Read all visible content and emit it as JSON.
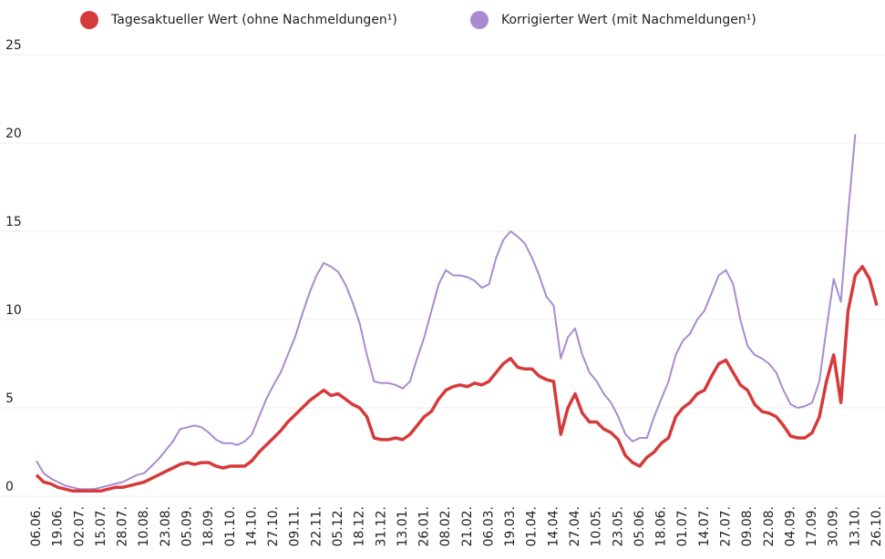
{
  "chart_data": {
    "type": "line",
    "categories": [
      "06.06.",
      null,
      null,
      "19.06.",
      null,
      null,
      "02.07.",
      null,
      null,
      "15.07.",
      null,
      null,
      "28.07.",
      null,
      null,
      "10.08.",
      null,
      null,
      "23.08.",
      null,
      null,
      "05.09.",
      null,
      null,
      "18.09.",
      null,
      null,
      "01.10.",
      null,
      null,
      "14.10.",
      null,
      null,
      "27.10.",
      null,
      null,
      "09.11.",
      null,
      null,
      "22.11.",
      null,
      null,
      "05.12.",
      null,
      null,
      "18.12.",
      null,
      null,
      "31.12.",
      null,
      null,
      "13.01.",
      null,
      null,
      "26.01.",
      null,
      null,
      "08.02.",
      null,
      null,
      "21.02.",
      null,
      null,
      "06.03.",
      null,
      null,
      "19.03.",
      null,
      null,
      "01.04.",
      null,
      null,
      "14.04.",
      null,
      null,
      "27.04.",
      null,
      null,
      "10.05.",
      null,
      null,
      "23.05.",
      null,
      null,
      "05.06.",
      null,
      null,
      "18.06.",
      null,
      null,
      "01.07.",
      null,
      null,
      "14.07.",
      null,
      null,
      "27.07.",
      null,
      null,
      "09.08.",
      null,
      null,
      "22.08.",
      null,
      null,
      "04.09.",
      null,
      null,
      "17.09.",
      null,
      null,
      "30.09.",
      null,
      null,
      "13.10.",
      null,
      null,
      "26.10."
    ],
    "series": [
      {
        "name": "Tagesaktueller Wert (ohne Nachmeldungen¹)",
        "color": "#d63a3a",
        "values": [
          1.2,
          0.8,
          0.7,
          0.5,
          0.4,
          0.3,
          0.3,
          0.3,
          0.3,
          0.3,
          0.4,
          0.5,
          0.5,
          0.6,
          0.7,
          0.8,
          1.0,
          1.2,
          1.4,
          1.6,
          1.8,
          1.9,
          1.8,
          1.9,
          1.9,
          1.7,
          1.6,
          1.7,
          1.7,
          1.7,
          2.0,
          2.5,
          2.9,
          3.3,
          3.7,
          4.2,
          4.6,
          5.0,
          5.4,
          5.7,
          6.0,
          5.7,
          5.8,
          5.5,
          5.2,
          5.0,
          4.5,
          3.3,
          3.2,
          3.2,
          3.3,
          3.2,
          3.5,
          4.0,
          4.5,
          4.8,
          5.5,
          6.0,
          6.2,
          6.3,
          6.2,
          6.4,
          6.3,
          6.5,
          7.0,
          7.5,
          7.8,
          7.3,
          7.2,
          7.2,
          6.8,
          6.6,
          6.5,
          3.5,
          5.0,
          5.8,
          4.7,
          4.2,
          4.2,
          3.8,
          3.6,
          3.2,
          2.3,
          1.9,
          1.7,
          2.2,
          2.5,
          3.0,
          3.3,
          4.5,
          5.0,
          5.3,
          5.8,
          6.0,
          6.8,
          7.5,
          7.7,
          7.0,
          6.3,
          6.0,
          5.2,
          4.8,
          4.7,
          4.5,
          4.0,
          3.4,
          3.3,
          3.3,
          3.6,
          4.5,
          6.5,
          8.0,
          5.3,
          10.5,
          12.5,
          13.0,
          12.3,
          10.8
        ]
      },
      {
        "name": "Korrigierter Wert (mit Nachmeldungen¹)",
        "color": "#a98bd0",
        "values": [
          2.0,
          1.3,
          1.0,
          0.8,
          0.6,
          0.5,
          0.4,
          0.4,
          0.4,
          0.5,
          0.6,
          0.7,
          0.8,
          1.0,
          1.2,
          1.3,
          1.7,
          2.1,
          2.6,
          3.1,
          3.8,
          3.9,
          4.0,
          3.9,
          3.6,
          3.2,
          3.0,
          3.0,
          2.9,
          3.1,
          3.5,
          4.5,
          5.5,
          6.3,
          7.0,
          8.0,
          9.0,
          10.3,
          11.5,
          12.5,
          13.2,
          13.0,
          12.7,
          12.0,
          11.0,
          9.8,
          8.0,
          6.5,
          6.4,
          6.4,
          6.3,
          6.1,
          6.5,
          7.8,
          9.0,
          10.5,
          12.0,
          12.8,
          12.5,
          12.5,
          12.4,
          12.2,
          11.8,
          12.0,
          13.5,
          14.5,
          15.0,
          14.7,
          14.3,
          13.5,
          12.5,
          11.3,
          10.8,
          7.8,
          9.0,
          9.5,
          8.0,
          7.0,
          6.5,
          5.8,
          5.3,
          4.5,
          3.5,
          3.1,
          3.3,
          3.3,
          4.5,
          5.5,
          6.5,
          8.0,
          8.8,
          9.2,
          10.0,
          10.5,
          11.5,
          12.5,
          12.8,
          12.0,
          10.0,
          8.5,
          8.0,
          7.8,
          7.5,
          7.0,
          6.0,
          5.2,
          5.0,
          5.1,
          5.3,
          6.5,
          9.5,
          12.3,
          11.0,
          16.0,
          20.5,
          null,
          null,
          null
        ]
      }
    ],
    "ylim": [
      0,
      25
    ],
    "yticks": [
      0,
      5,
      10,
      15,
      20,
      25
    ],
    "grid": true
  }
}
